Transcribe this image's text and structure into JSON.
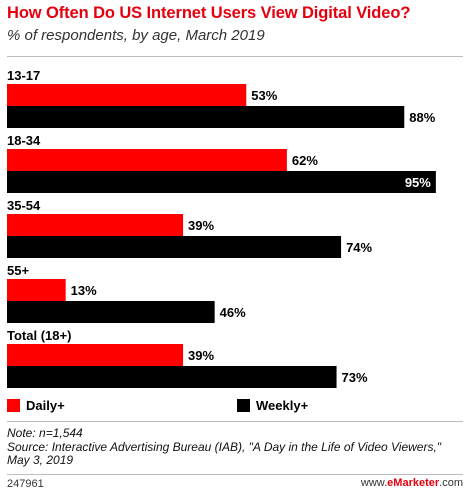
{
  "header": {
    "title": "How Often Do US Internet Users View Digital Video?",
    "subtitle": "% of respondents, by age, March 2019"
  },
  "chart_data": {
    "type": "bar",
    "orientation": "horizontal",
    "categories": [
      "13-17",
      "18-34",
      "35-54",
      "55+",
      "Total (18+)"
    ],
    "series": [
      {
        "name": "Daily+",
        "color": "#ff0000",
        "values": [
          53,
          62,
          39,
          13,
          39
        ]
      },
      {
        "name": "Weekly+",
        "color": "#000000",
        "values": [
          88,
          95,
          74,
          46,
          73
        ]
      }
    ],
    "value_suffix": "%",
    "xlim": [
      0,
      100
    ],
    "grid": false,
    "legend_position": "bottom"
  },
  "notes": {
    "note": "Note: n=1,544",
    "source": "Source: Interactive Advertising Bureau (IAB), \"A Day in the Life of Video Viewers,\" May 3, 2019"
  },
  "footer": {
    "chart_id": "247961",
    "brand_prefix": "www.",
    "brand_name": "eMarketer",
    "brand_suffix": ".com"
  }
}
